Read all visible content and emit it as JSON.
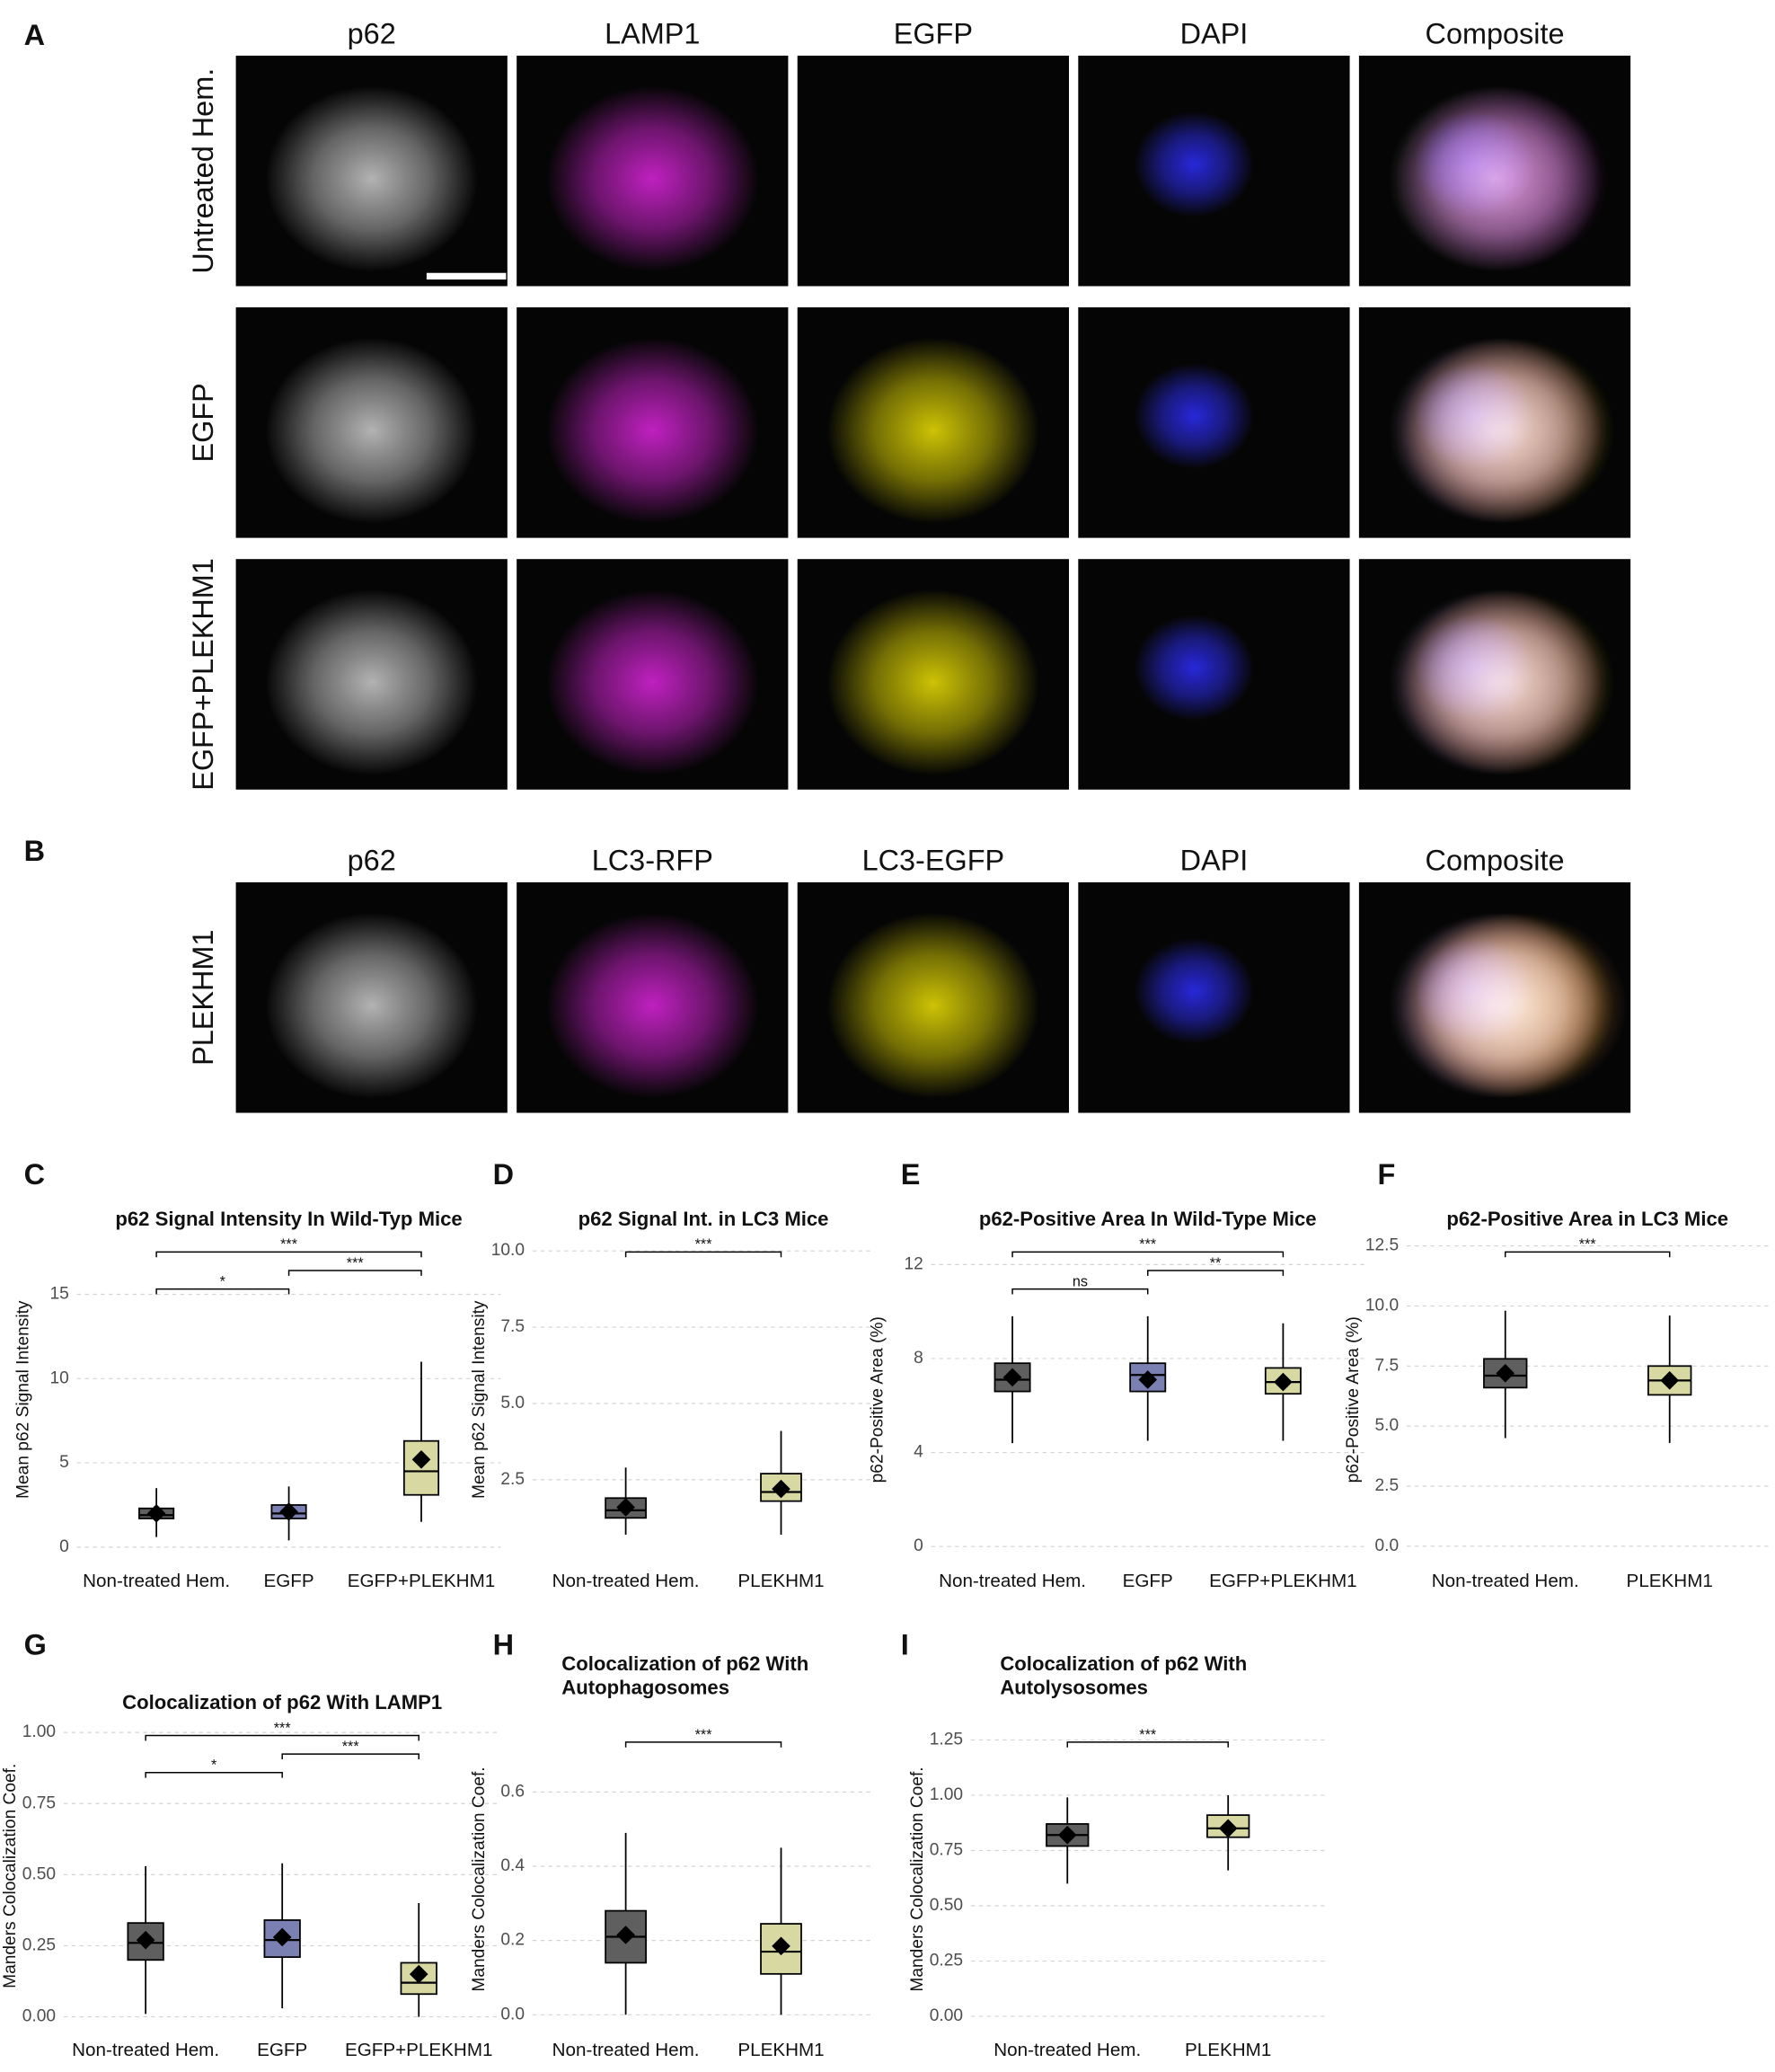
{
  "panels": [
    {
      "letter": "A",
      "columns": [
        "p62",
        "LAMP1",
        "EGFP",
        "DAPI",
        "Composite"
      ],
      "rows": [
        "Untreated Hem.",
        "EGFP",
        "EGFP+PLEKHM1"
      ]
    },
    {
      "letter": "B",
      "columns": [
        "p62",
        "LC3-RFP",
        "LC3-EGFP",
        "DAPI",
        "Composite"
      ],
      "rows": [
        "PLEKHM1"
      ]
    }
  ],
  "chart_data": [
    {
      "panel": "C",
      "type": "box",
      "title": [
        "p62 Signal Intensity In Wild-Typ Mice"
      ],
      "ylabel": "Mean p62 Signal Intensity",
      "categories": [
        "Non-treated Hem.",
        "EGFP",
        "EGFP+PLEKHM1"
      ],
      "colors": [
        "#5f5f5f",
        "#7b80b2",
        "#d8d9a2"
      ],
      "boxes": [
        {
          "whislo": 0.6,
          "q1": 1.7,
          "med": 1.9,
          "q3": 2.3,
          "whishi": 3.5,
          "mean": 2.0
        },
        {
          "whislo": 0.4,
          "q1": 1.7,
          "med": 2.0,
          "q3": 2.5,
          "whishi": 3.6,
          "mean": 2.1
        },
        {
          "whislo": 1.5,
          "q1": 3.1,
          "med": 4.5,
          "q3": 6.3,
          "whishi": 11.0,
          "mean": 5.2
        }
      ],
      "ylim": [
        -0.8,
        18.3
      ],
      "yticks": [
        0,
        5,
        10,
        15
      ],
      "grid": true,
      "significance": [
        {
          "groups": [
            "Non-treated Hem.",
            "EGFP+PLEKHM1"
          ],
          "label": "***"
        },
        {
          "groups": [
            "EGFP",
            "EGFP+PLEKHM1"
          ],
          "label": "***"
        },
        {
          "groups": [
            "Non-treated Hem.",
            "EGFP"
          ],
          "label": "*"
        }
      ]
    },
    {
      "panel": "D",
      "type": "box",
      "title": [
        "p62 Signal Int. in LC3 Mice"
      ],
      "ylabel": "Mean p62 Signal Intensity",
      "categories": [
        "Non-treated Hem.",
        "PLEKHM1"
      ],
      "colors": [
        "#5f5f5f",
        "#d8d9a2"
      ],
      "boxes": [
        {
          "whislo": 0.7,
          "q1": 1.25,
          "med": 1.5,
          "q3": 1.9,
          "whishi": 2.9,
          "mean": 1.6
        },
        {
          "whislo": 0.7,
          "q1": 1.8,
          "med": 2.1,
          "q3": 2.7,
          "whishi": 4.1,
          "mean": 2.2
        }
      ],
      "ylim": [
        -0.15,
        10.4
      ],
      "yticks": [
        2.5,
        {
          "value": 5,
          "label": "5.0"
        },
        7.5,
        {
          "value": 10,
          "label": "10.0"
        }
      ],
      "grid": true,
      "significance": [
        {
          "groups": [
            "Non-treated Hem.",
            "PLEKHM1"
          ],
          "label": "***"
        }
      ]
    },
    {
      "panel": "E",
      "type": "box",
      "title": [
        "p62-Positive Area In Wild-Type Mice"
      ],
      "ylabel": "p62-Positive Area (%)",
      "categories": [
        "Non-treated Hem.",
        "EGFP",
        "EGFP+PLEKHM1"
      ],
      "colors": [
        "#5f5f5f",
        "#7b80b2",
        "#d8d9a2"
      ],
      "boxes": [
        {
          "whislo": 4.4,
          "q1": 6.6,
          "med": 7.1,
          "q3": 7.8,
          "whishi": 9.8,
          "mean": 7.2
        },
        {
          "whislo": 4.5,
          "q1": 6.6,
          "med": 7.3,
          "q3": 7.8,
          "whishi": 9.8,
          "mean": 7.1
        },
        {
          "whislo": 4.5,
          "q1": 6.5,
          "med": 7.0,
          "q3": 7.6,
          "whishi": 9.5,
          "mean": 7.0
        }
      ],
      "ylim": [
        -0.6,
        13.1
      ],
      "yticks": [
        0,
        4,
        8,
        12
      ],
      "grid": true,
      "significance": [
        {
          "groups": [
            "Non-treated Hem.",
            "EGFP+PLEKHM1"
          ],
          "label": "***"
        },
        {
          "groups": [
            "EGFP",
            "EGFP+PLEKHM1"
          ],
          "label": "**"
        },
        {
          "groups": [
            "Non-treated Hem.",
            "EGFP"
          ],
          "label": "ns"
        }
      ]
    },
    {
      "panel": "F",
      "type": "box",
      "title": [
        "p62-Positive Area in LC3 Mice"
      ],
      "ylabel": "p62-Positive Area (%)",
      "categories": [
        "Non-treated Hem.",
        "PLEKHM1"
      ],
      "colors": [
        "#5f5f5f",
        "#d8d9a2"
      ],
      "boxes": [
        {
          "whislo": 4.5,
          "q1": 6.6,
          "med": 7.1,
          "q3": 7.8,
          "whishi": 9.8,
          "mean": 7.2
        },
        {
          "whislo": 4.3,
          "q1": 6.3,
          "med": 6.9,
          "q3": 7.5,
          "whishi": 9.6,
          "mean": 6.9
        }
      ],
      "ylim": [
        -0.6,
        12.8
      ],
      "yticks": [
        {
          "value": 0,
          "label": "0.0"
        },
        2.5,
        {
          "value": 5,
          "label": "5.0"
        },
        7.5,
        {
          "value": 10,
          "label": "10.0"
        },
        12.5
      ],
      "grid": true,
      "significance": [
        {
          "groups": [
            "Non-treated Hem.",
            "PLEKHM1"
          ],
          "label": "***"
        }
      ]
    },
    {
      "panel": "G",
      "type": "box",
      "title": [
        "Colocalization of p62 With LAMP1"
      ],
      "ylabel": "Manders Colocalization Coef.",
      "categories": [
        "Non-treated Hem.",
        "EGFP",
        "EGFP+PLEKHM1"
      ],
      "colors": [
        "#5f5f5f",
        "#7b80b2",
        "#d8d9a2"
      ],
      "boxes": [
        {
          "whislo": 0.01,
          "q1": 0.2,
          "med": 0.26,
          "q3": 0.33,
          "whishi": 0.53,
          "mean": 0.27
        },
        {
          "whislo": 0.03,
          "q1": 0.21,
          "med": 0.27,
          "q3": 0.34,
          "whishi": 0.54,
          "mean": 0.28
        },
        {
          "whislo": 0.0,
          "q1": 0.08,
          "med": 0.12,
          "q3": 0.19,
          "whishi": 0.4,
          "mean": 0.15
        }
      ],
      "ylim": [
        -0.045,
        1.036
      ],
      "yticks": [
        {
          "value": 0,
          "label": "0.00"
        },
        0.25,
        {
          "value": 0.5,
          "label": "0.50"
        },
        0.75,
        {
          "value": 1,
          "label": "1.00"
        }
      ],
      "grid": true,
      "significance": [
        {
          "groups": [
            "Non-treated Hem.",
            "EGFP+PLEKHM1"
          ],
          "label": "***"
        },
        {
          "groups": [
            "EGFP",
            "EGFP+PLEKHM1"
          ],
          "label": "***"
        },
        {
          "groups": [
            "Non-treated Hem.",
            "EGFP"
          ],
          "label": "*"
        }
      ]
    },
    {
      "panel": "H",
      "type": "box",
      "title": [
        "Colocalization of p62 With",
        "Autophagosomes"
      ],
      "ylabel": "Manders Colocalization Coef.",
      "categories": [
        "Non-treated Hem.",
        "PLEKHM1"
      ],
      "colors": [
        "#5f5f5f",
        "#d8d9a2"
      ],
      "boxes": [
        {
          "whislo": 0.0,
          "q1": 0.14,
          "med": 0.21,
          "q3": 0.28,
          "whishi": 0.49,
          "mean": 0.215
        },
        {
          "whislo": 0.0,
          "q1": 0.11,
          "med": 0.17,
          "q3": 0.245,
          "whishi": 0.45,
          "mean": 0.185
        }
      ],
      "ylim": [
        -0.04,
        0.77
      ],
      "yticks": [
        {
          "value": 0,
          "label": "0.0"
        },
        0.2,
        0.4,
        0.6
      ],
      "grid": true,
      "significance": [
        {
          "groups": [
            "Non-treated Hem.",
            "PLEKHM1"
          ],
          "label": "***"
        }
      ]
    },
    {
      "panel": "I",
      "type": "box",
      "title": [
        "Colocalization of p62 With",
        "Autolysosomes"
      ],
      "ylabel": "Manders Colocalization Coef.",
      "categories": [
        "Non-treated Hem.",
        "PLEKHM1"
      ],
      "colors": [
        "#5f5f5f",
        "#d8d9a2"
      ],
      "boxes": [
        {
          "whislo": 0.6,
          "q1": 0.77,
          "med": 0.82,
          "q3": 0.87,
          "whishi": 0.99,
          "mean": 0.82
        },
        {
          "whislo": 0.66,
          "q1": 0.81,
          "med": 0.85,
          "q3": 0.91,
          "whishi": 1.0,
          "mean": 0.85
        }
      ],
      "ylim": [
        -0.06,
        1.3
      ],
      "yticks": [
        {
          "value": 0,
          "label": "0.00"
        },
        0.25,
        {
          "value": 0.5,
          "label": "0.50"
        },
        0.75,
        {
          "value": 1,
          "label": "1.00"
        },
        1.25
      ],
      "grid": true,
      "significance": [
        {
          "groups": [
            "Non-treated Hem.",
            "PLEKHM1"
          ],
          "label": "***"
        }
      ]
    }
  ]
}
